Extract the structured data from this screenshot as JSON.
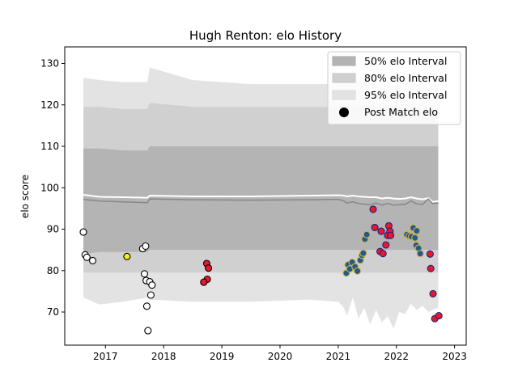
{
  "chart_data": {
    "type": "scatter",
    "title": "Hugh Renton: elo History",
    "xlabel": "",
    "ylabel": "elo score",
    "xlim": [
      2016.3,
      2023.2
    ],
    "ylim": [
      62,
      134
    ],
    "x_ticks": [
      2017,
      2018,
      2019,
      2020,
      2021,
      2022,
      2023
    ],
    "y_ticks": [
      70,
      80,
      90,
      100,
      110,
      120,
      130
    ],
    "legend_position": "top-right",
    "grid": false,
    "colors": {
      "band95": "#e3e3e3",
      "band80": "#d0d0d0",
      "band50": "#b4b4b4",
      "median": "#888888",
      "mean": "#ffffff",
      "point_edge_default": "#000000"
    },
    "legend": [
      {
        "label": "50% elo Interval",
        "swatch": "band50"
      },
      {
        "label": "80% elo Interval",
        "swatch": "band80"
      },
      {
        "label": "95% elo Interval",
        "swatch": "band95"
      },
      {
        "label": "Post Match elo",
        "swatch": "point"
      }
    ],
    "bands": {
      "x": [
        2016.62,
        2016.9,
        2017.3,
        2017.72,
        2017.76,
        2018.5,
        2019.5,
        2020.5,
        2021.0,
        2021.1,
        2021.15,
        2021.25,
        2021.35,
        2021.45,
        2021.55,
        2021.65,
        2021.75,
        2021.85,
        2021.95,
        2022.05,
        2022.15,
        2022.25,
        2022.35,
        2022.45,
        2022.55,
        2022.62,
        2022.72
      ],
      "p95_upper": [
        126.5,
        126.0,
        125.5,
        125.5,
        129.0,
        126.0,
        125.0,
        125.0,
        125.0,
        126.0,
        125.5,
        126.0,
        125.5,
        126.0,
        125.0,
        126.0,
        124.0,
        125.0,
        124.0,
        126.0,
        125.0,
        126.0,
        125.0,
        125.5,
        124.5,
        125.0,
        125.0
      ],
      "p80_upper": [
        119.5,
        119.5,
        119.0,
        119.0,
        120.5,
        119.5,
        119.5,
        119.5,
        119.5,
        119.5,
        119.5,
        119.5,
        119.5,
        119.5,
        119.5,
        119.5,
        119.5,
        119.5,
        119.5,
        119.5,
        119.5,
        119.5,
        119.5,
        119.5,
        119.5,
        119.5,
        119.5
      ],
      "p50_upper": [
        109.5,
        109.5,
        109.0,
        109.0,
        110.0,
        110.0,
        110.0,
        110.0,
        110.0,
        110.0,
        110.0,
        110.0,
        110.0,
        110.0,
        110.0,
        110.0,
        110.0,
        110.0,
        110.0,
        110.0,
        110.0,
        110.0,
        110.0,
        110.0,
        110.0,
        110.0,
        110.0
      ],
      "mean": [
        98.3,
        97.8,
        97.7,
        97.6,
        98.1,
        97.9,
        97.9,
        98.1,
        98.2,
        98.1,
        97.9,
        98.1,
        97.9,
        97.8,
        97.7,
        97.7,
        97.4,
        97.6,
        97.4,
        97.3,
        97.4,
        97.7,
        97.4,
        97.2,
        97.5,
        96.6,
        96.8
      ],
      "median": [
        97.2,
        96.8,
        96.6,
        96.4,
        97.3,
        97.1,
        97.0,
        97.1,
        97.2,
        96.8,
        96.3,
        96.6,
        96.2,
        96.0,
        95.9,
        96.3,
        95.8,
        96.2,
        95.8,
        95.9,
        96.0,
        96.8,
        96.1,
        96.0,
        97.3,
        96.2,
        96.3
      ],
      "p50_lower": [
        84.0,
        84.5,
        84.5,
        84.5,
        85.0,
        85.0,
        85.0,
        85.0,
        85.0,
        85.0,
        85.0,
        85.0,
        85.0,
        85.0,
        85.0,
        85.0,
        85.0,
        85.0,
        85.0,
        85.0,
        85.0,
        85.0,
        85.0,
        85.0,
        85.0,
        85.0,
        85.0
      ],
      "p80_lower": [
        79.5,
        79.5,
        79.5,
        79.5,
        79.5,
        79.5,
        79.5,
        79.5,
        79.5,
        79.5,
        79.5,
        79.5,
        79.5,
        79.5,
        79.5,
        79.5,
        79.5,
        79.5,
        79.5,
        79.5,
        79.5,
        79.5,
        79.5,
        79.5,
        79.5,
        79.5,
        79.5
      ],
      "p95_lower": [
        73.5,
        71.8,
        72.5,
        73.5,
        73.0,
        72.5,
        72.5,
        73.0,
        72.5,
        71.0,
        69.0,
        73.5,
        68.5,
        71.0,
        67.0,
        70.5,
        67.5,
        69.0,
        66.0,
        70.0,
        69.5,
        72.0,
        70.5,
        71.5,
        70.0,
        70.5,
        71.0
      ]
    },
    "points": [
      {
        "x": 2016.62,
        "y": 89.3,
        "fill": "#ffffff",
        "edge": "#000000"
      },
      {
        "x": 2016.65,
        "y": 83.8,
        "fill": "#ffffff",
        "edge": "#000000"
      },
      {
        "x": 2016.68,
        "y": 83.2,
        "fill": "#ffffff",
        "edge": "#000000"
      },
      {
        "x": 2016.78,
        "y": 82.4,
        "fill": "#ffffff",
        "edge": "#000000"
      },
      {
        "x": 2017.37,
        "y": 83.4,
        "fill": "#f0f020",
        "edge": "#000000"
      },
      {
        "x": 2017.64,
        "y": 85.3,
        "fill": "#ffffff",
        "edge": "#000000"
      },
      {
        "x": 2017.69,
        "y": 85.9,
        "fill": "#ffffff",
        "edge": "#000000"
      },
      {
        "x": 2017.67,
        "y": 79.2,
        "fill": "#ffffff",
        "edge": "#000000"
      },
      {
        "x": 2017.7,
        "y": 77.6,
        "fill": "#ffffff",
        "edge": "#000000"
      },
      {
        "x": 2017.76,
        "y": 77.3,
        "fill": "#ffffff",
        "edge": "#000000"
      },
      {
        "x": 2017.8,
        "y": 76.5,
        "fill": "#ffffff",
        "edge": "#000000"
      },
      {
        "x": 2017.78,
        "y": 74.1,
        "fill": "#ffffff",
        "edge": "#000000"
      },
      {
        "x": 2017.71,
        "y": 71.4,
        "fill": "#ffffff",
        "edge": "#000000"
      },
      {
        "x": 2017.73,
        "y": 65.5,
        "fill": "#ffffff",
        "edge": "#000000"
      },
      {
        "x": 2018.74,
        "y": 81.7,
        "fill": "#e8192c",
        "edge": "#000000"
      },
      {
        "x": 2018.77,
        "y": 80.6,
        "fill": "#e8192c",
        "edge": "#000000"
      },
      {
        "x": 2018.75,
        "y": 77.9,
        "fill": "#e8192c",
        "edge": "#000000"
      },
      {
        "x": 2018.69,
        "y": 77.2,
        "fill": "#e8192c",
        "edge": "#000000"
      },
      {
        "x": 2021.14,
        "y": 79.4,
        "fill": "#1f5c8a",
        "edge": "#d4b04a"
      },
      {
        "x": 2021.17,
        "y": 81.4,
        "fill": "#1f5c8a",
        "edge": "#d4b04a"
      },
      {
        "x": 2021.2,
        "y": 80.4,
        "fill": "#1f5c8a",
        "edge": "#d4b04a"
      },
      {
        "x": 2021.24,
        "y": 82.0,
        "fill": "#1f5c8a",
        "edge": "#d4b04a"
      },
      {
        "x": 2021.29,
        "y": 80.9,
        "fill": "#1f5c8a",
        "edge": "#d4b04a"
      },
      {
        "x": 2021.33,
        "y": 79.9,
        "fill": "#1f5c8a",
        "edge": "#d4b04a"
      },
      {
        "x": 2021.38,
        "y": 82.5,
        "fill": "#1f5c8a",
        "edge": "#d4b04a"
      },
      {
        "x": 2021.41,
        "y": 83.7,
        "fill": "#1f5c8a",
        "edge": "#d4b04a"
      },
      {
        "x": 2021.43,
        "y": 84.2,
        "fill": "#1f5c8a",
        "edge": "#d4b04a"
      },
      {
        "x": 2021.46,
        "y": 87.6,
        "fill": "#1f5c8a",
        "edge": "#d4b04a"
      },
      {
        "x": 2021.49,
        "y": 88.7,
        "fill": "#1f5c8a",
        "edge": "#d4b04a"
      },
      {
        "x": 2021.6,
        "y": 94.8,
        "fill": "#e8192c",
        "edge": "#1a237e"
      },
      {
        "x": 2021.63,
        "y": 90.4,
        "fill": "#e8192c",
        "edge": "#1a237e"
      },
      {
        "x": 2021.74,
        "y": 89.5,
        "fill": "#e8192c",
        "edge": "#1a237e"
      },
      {
        "x": 2021.72,
        "y": 84.6,
        "fill": "#e8192c",
        "edge": "#1a237e"
      },
      {
        "x": 2021.77,
        "y": 84.1,
        "fill": "#e8192c",
        "edge": "#1a237e"
      },
      {
        "x": 2021.82,
        "y": 86.2,
        "fill": "#e8192c",
        "edge": "#1a237e"
      },
      {
        "x": 2021.85,
        "y": 88.5,
        "fill": "#e8192c",
        "edge": "#1a237e"
      },
      {
        "x": 2021.87,
        "y": 90.8,
        "fill": "#e8192c",
        "edge": "#1a237e"
      },
      {
        "x": 2021.89,
        "y": 89.5,
        "fill": "#e8192c",
        "edge": "#1a237e"
      },
      {
        "x": 2021.9,
        "y": 88.5,
        "fill": "#e8192c",
        "edge": "#1a237e"
      },
      {
        "x": 2022.18,
        "y": 88.7,
        "fill": "#1f5c8a",
        "edge": "#d4b04a"
      },
      {
        "x": 2022.22,
        "y": 88.4,
        "fill": "#1f5c8a",
        "edge": "#d4b04a"
      },
      {
        "x": 2022.26,
        "y": 88.2,
        "fill": "#1f5c8a",
        "edge": "#d4b04a"
      },
      {
        "x": 2022.29,
        "y": 90.3,
        "fill": "#1f5c8a",
        "edge": "#d4b04a"
      },
      {
        "x": 2022.32,
        "y": 87.9,
        "fill": "#1f5c8a",
        "edge": "#d4b04a"
      },
      {
        "x": 2022.35,
        "y": 89.6,
        "fill": "#1f5c8a",
        "edge": "#d4b04a"
      },
      {
        "x": 2022.34,
        "y": 86.1,
        "fill": "#1f5c8a",
        "edge": "#d4b04a"
      },
      {
        "x": 2022.38,
        "y": 85.4,
        "fill": "#1f5c8a",
        "edge": "#d4b04a"
      },
      {
        "x": 2022.41,
        "y": 84.1,
        "fill": "#1f5c8a",
        "edge": "#d4b04a"
      },
      {
        "x": 2022.58,
        "y": 84.0,
        "fill": "#e8192c",
        "edge": "#1a237e"
      },
      {
        "x": 2022.59,
        "y": 80.5,
        "fill": "#e8192c",
        "edge": "#1a237e"
      },
      {
        "x": 2022.63,
        "y": 74.4,
        "fill": "#e8192c",
        "edge": "#1a237e"
      },
      {
        "x": 2022.66,
        "y": 68.4,
        "fill": "#e8192c",
        "edge": "#1a237e"
      },
      {
        "x": 2022.73,
        "y": 69.1,
        "fill": "#e8192c",
        "edge": "#1a237e"
      }
    ]
  }
}
